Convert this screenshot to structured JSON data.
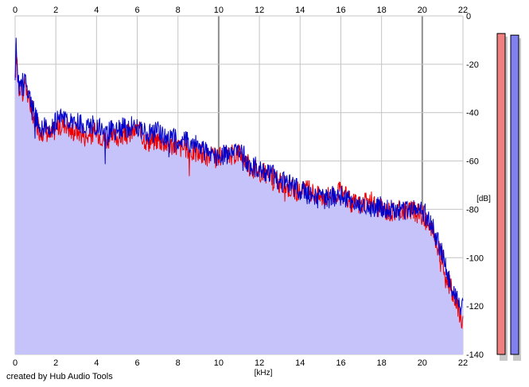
{
  "chart_data": {
    "type": "area",
    "x_unit_label": "[kHz]",
    "y_unit_label": "[dB]",
    "xlim": [
      0,
      22
    ],
    "ylim": [
      -140,
      0
    ],
    "x_ticks": [
      "0",
      "2",
      "4",
      "6",
      "8",
      "10",
      "12",
      "14",
      "16",
      "18",
      "20",
      "22"
    ],
    "y_ticks": [
      "0",
      "-20",
      "-40",
      "-60",
      "-80",
      "-100",
      "-120",
      "-140"
    ],
    "grid": true,
    "colors": {
      "fill": "#c6c3fb",
      "left_channel": "#ee0000",
      "right_channel": "#0000cc",
      "grid": "#c4c4c4",
      "grid_major": "#8f8f8f",
      "meter_left": "#f08080",
      "meter_right": "#8080f0"
    },
    "series": [
      {
        "color": "#ee0000",
        "x": [
          0,
          0.05,
          0.1,
          0.2,
          0.3,
          0.4,
          0.5,
          0.6,
          0.8,
          1,
          1.25,
          1.5,
          1.75,
          2,
          2.25,
          2.5,
          2.75,
          3,
          3.5,
          4,
          4.5,
          5,
          5.5,
          6,
          6.5,
          7,
          7.5,
          8,
          8.5,
          9,
          9.5,
          10,
          10.5,
          11,
          11.5,
          12,
          12.5,
          13,
          13.5,
          14,
          14.5,
          15,
          15.5,
          16,
          16.5,
          17,
          17.5,
          18,
          18.5,
          19,
          19.5,
          20,
          20.5,
          21,
          21.25,
          21.5,
          21.75,
          22
        ],
        "values": [
          -28,
          -15,
          -22,
          -30,
          -27,
          -34,
          -26,
          -33,
          -38,
          -44,
          -48,
          -47,
          -50,
          -46,
          -45,
          -44,
          -48,
          -47,
          -50,
          -48,
          -51,
          -50,
          -49,
          -47,
          -52,
          -51,
          -53,
          -54,
          -55,
          -57,
          -58,
          -59,
          -58,
          -56,
          -62,
          -64,
          -66,
          -69,
          -71,
          -73,
          -72,
          -75,
          -74,
          -73,
          -77,
          -78,
          -77,
          -80,
          -81,
          -80,
          -81,
          -82,
          -90,
          -101,
          -109,
          -115,
          -121,
          -127
        ]
      },
      {
        "color": "#0000cc",
        "x": [
          0,
          0.05,
          0.1,
          0.2,
          0.3,
          0.4,
          0.5,
          0.6,
          0.8,
          1,
          1.25,
          1.5,
          1.75,
          2,
          2.25,
          2.5,
          2.75,
          3,
          3.5,
          4,
          4.5,
          5,
          5.5,
          6,
          6.5,
          7,
          7.5,
          8,
          8.5,
          9,
          9.5,
          10,
          10.5,
          11,
          11.5,
          12,
          12.5,
          13,
          13.5,
          14,
          14.5,
          15,
          15.5,
          16,
          16.5,
          17,
          17.5,
          18,
          18.5,
          19,
          19.5,
          20,
          20.5,
          21,
          21.25,
          21.5,
          21.75,
          22
        ],
        "values": [
          -25,
          -13,
          -19,
          -29,
          -24,
          -30,
          -23,
          -32,
          -36,
          -42,
          -46,
          -45,
          -47,
          -44,
          -43,
          -41,
          -45,
          -44,
          -46,
          -45,
          -48,
          -47,
          -46,
          -45,
          -49,
          -48,
          -50,
          -51,
          -52,
          -54,
          -57,
          -58,
          -57,
          -55,
          -61,
          -63,
          -65,
          -68,
          -70,
          -72,
          -74,
          -76,
          -75,
          -74,
          -76,
          -78,
          -79,
          -79,
          -80,
          -81,
          -80,
          -80,
          -87,
          -99,
          -107,
          -113,
          -119,
          -121
        ]
      }
    ]
  },
  "meters": {
    "left_level": 0.985,
    "right_level": 0.98
  },
  "footer": {
    "credit": "created by Hub Audio Tools"
  }
}
